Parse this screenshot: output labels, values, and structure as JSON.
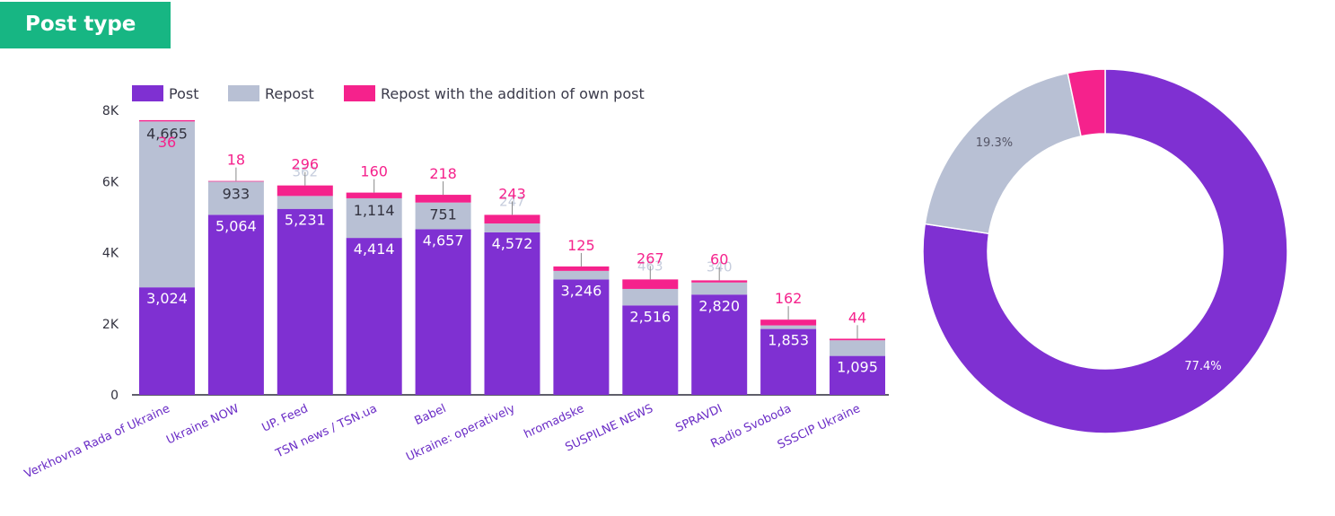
{
  "header": {
    "title": "Post type"
  },
  "colors": {
    "post": "#7f30d2",
    "repost": "#b8c0d4",
    "repost_own": "#f5228c",
    "header": "#17b683"
  },
  "chart_data": [
    {
      "type": "bar",
      "stacked": true,
      "legend_position": "top",
      "ylim": [
        0,
        8000
      ],
      "y_ticks": [
        {
          "value": 0,
          "label": "0"
        },
        {
          "value": 2000,
          "label": "2K"
        },
        {
          "value": 4000,
          "label": "4K"
        },
        {
          "value": 6000,
          "label": "6K"
        },
        {
          "value": 8000,
          "label": "8K"
        }
      ],
      "categories": [
        "Verkhovna Rada of Ukraine",
        "Ukraine NOW",
        "UP. Feed",
        "TSN news / TSN.ua",
        "Babel",
        "Ukraine: operatively",
        "hromadske",
        "SUSPILNE NEWS",
        "SPRAVDI",
        "Radio Svoboda",
        "SSSCIP Ukraine"
      ],
      "series": [
        {
          "name": "Post",
          "values": [
            3024,
            5064,
            5231,
            4414,
            4657,
            4572,
            3246,
            2516,
            2820,
            1853,
            1095
          ],
          "labels": [
            "3,024",
            "5,064",
            "5,231",
            "4,414",
            "4,657",
            "4,572",
            "3,246",
            "2,516",
            "2,820",
            "1,853",
            "1,095"
          ]
        },
        {
          "name": "Repost",
          "values": [
            4665,
            933,
            362,
            1114,
            751,
            247,
            240,
            463,
            340,
            100,
            440
          ],
          "labels": [
            "4,665",
            "933",
            "362",
            "1,114",
            "751",
            "247",
            "",
            "463",
            "340",
            "",
            ""
          ]
        },
        {
          "name": "Repost with the addition of own post",
          "values": [
            36,
            18,
            296,
            160,
            218,
            243,
            125,
            267,
            60,
            162,
            44
          ],
          "labels": [
            "36",
            "18",
            "296",
            "160",
            "218",
            "243",
            "125",
            "267",
            "60",
            "162",
            "44"
          ]
        }
      ]
    },
    {
      "type": "pie",
      "donut": true,
      "slices": [
        {
          "name": "Post",
          "value": 77.4,
          "label": "77.4%"
        },
        {
          "name": "Repost",
          "value": 19.3,
          "label": "19.3%"
        },
        {
          "name": "Repost with the addition of own post",
          "value": 3.3,
          "label": ""
        }
      ]
    }
  ]
}
